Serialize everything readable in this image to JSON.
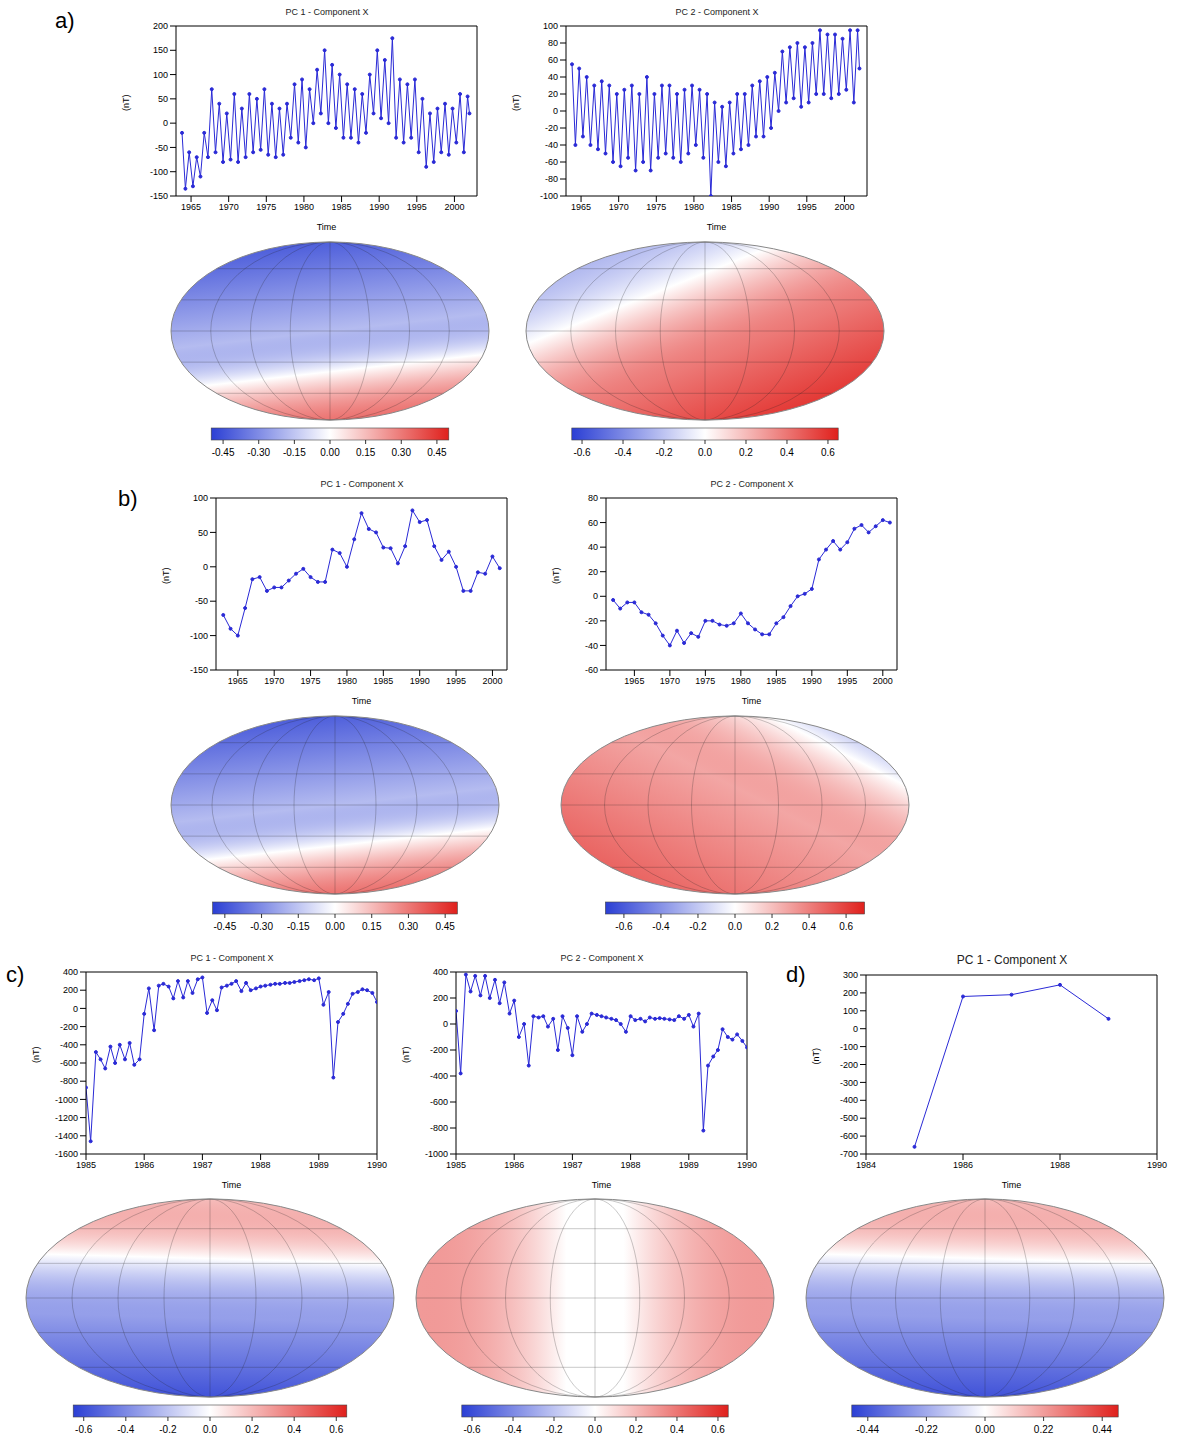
{
  "chart_data": [
    {
      "type": "line",
      "panel": "a)",
      "title": "PC 1 - Component X",
      "xlabel": "Time",
      "ylabel": "(nT)",
      "color": "#2a2ad6",
      "marker": "circle",
      "xlim": [
        1963,
        2003
      ],
      "xticks": [
        1965,
        1970,
        1975,
        1980,
        1985,
        1990,
        1995,
        2000
      ],
      "ylim": [
        -150,
        200
      ],
      "yticks": [
        -150,
        -100,
        -50,
        0,
        50,
        100,
        150,
        200
      ],
      "x": [
        1963.8,
        1964.25,
        1964.75,
        1965.25,
        1965.75,
        1966.25,
        1966.75,
        1967.25,
        1967.75,
        1968.25,
        1968.75,
        1969.25,
        1969.75,
        1970.25,
        1970.75,
        1971.25,
        1971.75,
        1972.25,
        1972.75,
        1973.25,
        1973.75,
        1974.25,
        1974.75,
        1975.25,
        1975.75,
        1976.25,
        1976.75,
        1977.25,
        1977.75,
        1978.25,
        1978.75,
        1979.25,
        1979.75,
        1980.25,
        1980.75,
        1981.25,
        1981.75,
        1982.25,
        1982.75,
        1983.25,
        1983.75,
        1984.25,
        1984.75,
        1985.25,
        1985.75,
        1986.25,
        1986.75,
        1987.25,
        1987.75,
        1988.25,
        1988.75,
        1989.25,
        1989.75,
        1990.25,
        1990.75,
        1991.25,
        1991.75,
        1992.25,
        1992.75,
        1993.25,
        1993.75,
        1994.25,
        1994.75,
        1995.25,
        1995.75,
        1996.25,
        1996.75,
        1997.25,
        1997.75,
        1998.25,
        1998.75,
        1999.25,
        1999.75,
        2000.25,
        2000.75,
        2001.25,
        2001.75,
        2002.0
      ],
      "values": [
        -20,
        -135,
        -60,
        -130,
        -70,
        -110,
        -20,
        -70,
        70,
        -60,
        40,
        -80,
        20,
        -75,
        60,
        -80,
        30,
        -70,
        60,
        -60,
        50,
        -55,
        70,
        -65,
        40,
        -70,
        30,
        -65,
        40,
        -30,
        80,
        -40,
        90,
        -50,
        70,
        0,
        110,
        20,
        150,
        0,
        120,
        -10,
        100,
        -30,
        80,
        -30,
        70,
        -40,
        60,
        -20,
        100,
        20,
        150,
        10,
        130,
        0,
        175,
        -30,
        90,
        -40,
        80,
        -30,
        90,
        -60,
        50,
        -90,
        20,
        -80,
        30,
        -60,
        40,
        -65,
        30,
        -40,
        60,
        -60,
        55,
        20
      ]
    },
    {
      "type": "line",
      "panel": "a)",
      "title": "PC 2 - Component X",
      "xlabel": "Time",
      "ylabel": "(nT)",
      "color": "#2a2ad6",
      "marker": "circle",
      "xlim": [
        1963,
        2003
      ],
      "xticks": [
        1965,
        1970,
        1975,
        1980,
        1985,
        1990,
        1995,
        2000
      ],
      "ylim": [
        -100,
        100
      ],
      "yticks": [
        -100,
        -80,
        -60,
        -40,
        -20,
        0,
        20,
        40,
        60,
        80,
        100
      ],
      "x": [
        1963.8,
        1964.25,
        1964.75,
        1965.25,
        1965.75,
        1966.25,
        1966.75,
        1967.25,
        1967.75,
        1968.25,
        1968.75,
        1969.25,
        1969.75,
        1970.25,
        1970.75,
        1971.25,
        1971.75,
        1972.25,
        1972.75,
        1973.25,
        1973.75,
        1974.25,
        1974.75,
        1975.25,
        1975.75,
        1976.25,
        1976.75,
        1977.25,
        1977.75,
        1978.25,
        1978.75,
        1979.25,
        1979.75,
        1980.25,
        1980.75,
        1981.25,
        1981.75,
        1982.25,
        1982.75,
        1983.25,
        1983.75,
        1984.25,
        1984.75,
        1985.25,
        1985.75,
        1986.25,
        1986.75,
        1987.25,
        1987.75,
        1988.25,
        1988.75,
        1989.25,
        1989.75,
        1990.25,
        1990.75,
        1991.25,
        1991.75,
        1992.25,
        1992.75,
        1993.25,
        1993.75,
        1994.25,
        1994.75,
        1995.25,
        1995.75,
        1996.25,
        1996.75,
        1997.25,
        1997.75,
        1998.25,
        1998.75,
        1999.25,
        1999.75,
        2000.25,
        2000.75,
        2001.25,
        2001.75,
        2002.0
      ],
      "values": [
        55,
        -40,
        50,
        -30,
        40,
        -40,
        30,
        -45,
        35,
        -50,
        30,
        -60,
        20,
        -65,
        25,
        -55,
        30,
        -70,
        20,
        -60,
        40,
        -70,
        20,
        -55,
        30,
        -50,
        30,
        -55,
        20,
        -60,
        25,
        -50,
        30,
        -40,
        25,
        -55,
        20,
        -100,
        10,
        -60,
        5,
        -65,
        10,
        -50,
        20,
        -45,
        20,
        -40,
        30,
        -30,
        35,
        -30,
        40,
        -20,
        45,
        0,
        70,
        10,
        75,
        15,
        80,
        5,
        75,
        10,
        80,
        20,
        95,
        20,
        90,
        15,
        90,
        20,
        85,
        25,
        95,
        10,
        95,
        50
      ]
    },
    {
      "type": "map",
      "panel": "a)",
      "colors": [
        "#2b3fd4",
        "#ffffff",
        "#e0201c"
      ],
      "colorbar": {
        "range": [
          -0.5,
          0.5
        ],
        "ticks": [
          -0.45,
          {
            "value": -0.3,
            "label": "-0.30"
          },
          -0.15,
          {
            "value": 0,
            "label": "0.00"
          },
          0.15,
          {
            "value": 0.3,
            "label": "0.30"
          },
          0.45
        ]
      }
    },
    {
      "type": "map",
      "panel": "a)",
      "colors": [
        "#2b3fd4",
        "#ffffff",
        "#e0201c"
      ],
      "colorbar": {
        "range": [
          -0.65,
          0.65
        ],
        "ticks": [
          -0.6,
          -0.4,
          -0.2,
          {
            "value": 0,
            "label": "0.0"
          },
          0.2,
          0.4,
          0.6
        ]
      }
    },
    {
      "type": "line",
      "panel": "b)",
      "title": "PC 1 - Component X",
      "xlabel": "Time",
      "ylabel": "(nT)",
      "color": "#2a2ad6",
      "marker": "circle",
      "xlim": [
        1962,
        2002
      ],
      "xticks": [
        1965,
        1970,
        1975,
        1980,
        1985,
        1990,
        1995,
        2000
      ],
      "ylim": [
        -150,
        100
      ],
      "yticks": [
        -150,
        -100,
        -50,
        0,
        50,
        100
      ],
      "x": [
        1963,
        1964,
        1965,
        1966,
        1967,
        1968,
        1969,
        1970,
        1971,
        1972,
        1973,
        1974,
        1975,
        1976,
        1977,
        1978,
        1979,
        1980,
        1981,
        1982,
        1983,
        1984,
        1985,
        1986,
        1987,
        1988,
        1989,
        1990,
        1991,
        1992,
        1993,
        1994,
        1995,
        1996,
        1997,
        1998,
        1999,
        2000,
        2001
      ],
      "values": [
        -70,
        -90,
        -100,
        -60,
        -18,
        -15,
        -35,
        -30,
        -30,
        -20,
        -10,
        -3,
        -15,
        -22,
        -22,
        25,
        20,
        0,
        40,
        78,
        55,
        50,
        28,
        27,
        5,
        30,
        82,
        65,
        68,
        30,
        10,
        22,
        0,
        -35,
        -35,
        -8,
        -10,
        15,
        -2
      ]
    },
    {
      "type": "line",
      "panel": "b)",
      "title": "PC 2 - Component X",
      "xlabel": "Time",
      "ylabel": "(nT)",
      "color": "#2a2ad6",
      "marker": "circle",
      "xlim": [
        1961,
        2002
      ],
      "xticks": [
        1965,
        1970,
        1975,
        1980,
        1985,
        1990,
        1995,
        2000
      ],
      "ylim": [
        -60,
        80
      ],
      "yticks": [
        -60,
        -40,
        -20,
        0,
        20,
        40,
        60,
        80
      ],
      "x": [
        1962,
        1963,
        1964,
        1965,
        1966,
        1967,
        1968,
        1969,
        1970,
        1971,
        1972,
        1973,
        1974,
        1975,
        1976,
        1977,
        1978,
        1979,
        1980,
        1981,
        1982,
        1983,
        1984,
        1985,
        1986,
        1987,
        1988,
        1989,
        1990,
        1991,
        1992,
        1993,
        1994,
        1995,
        1996,
        1997,
        1998,
        1999,
        2000,
        2001
      ],
      "values": [
        -3,
        -10,
        -5,
        -5,
        -13,
        -15,
        -22,
        -32,
        -40,
        -28,
        -38,
        -30,
        -33,
        -20,
        -20,
        -23,
        -24,
        -22,
        -14,
        -22,
        -27,
        -31,
        -31,
        -22,
        -17,
        -8,
        0,
        2,
        6,
        30,
        38,
        45,
        38,
        44,
        55,
        58,
        52,
        57,
        62,
        60
      ]
    },
    {
      "type": "map",
      "panel": "b)",
      "colors": [
        "#2b3fd4",
        "#ffffff",
        "#e0201c"
      ],
      "colorbar": {
        "range": [
          -0.5,
          0.5
        ],
        "ticks": [
          -0.45,
          {
            "value": -0.3,
            "label": "-0.30"
          },
          -0.15,
          {
            "value": 0,
            "label": "0.00"
          },
          0.15,
          {
            "value": 0.3,
            "label": "0.30"
          },
          0.45
        ]
      }
    },
    {
      "type": "map",
      "panel": "b)",
      "colors": [
        "#2b3fd4",
        "#ffffff",
        "#e0201c"
      ],
      "colorbar": {
        "range": [
          -0.7,
          0.7
        ],
        "ticks": [
          -0.6,
          -0.4,
          -0.2,
          {
            "value": 0,
            "label": "0.0"
          },
          0.2,
          0.4,
          0.6
        ]
      }
    },
    {
      "type": "line",
      "panel": "c)",
      "title": "PC 1 - Component X",
      "xlabel": "Time",
      "ylabel": "(nT)",
      "color": "#2a2ad6",
      "marker": "circle",
      "xlim": [
        1985,
        1990
      ],
      "xticks": [
        1985,
        1986,
        1987,
        1988,
        1989,
        1990
      ],
      "ylim": [
        -1600,
        400
      ],
      "yticks": [
        -1600,
        -1400,
        -1200,
        -1000,
        -800,
        -600,
        -400,
        -200,
        0,
        200,
        400
      ],
      "x": [
        1985,
        1985.08,
        1985.17,
        1985.25,
        1985.33,
        1985.42,
        1985.5,
        1985.58,
        1985.67,
        1985.75,
        1985.83,
        1985.92,
        1986,
        1986.08,
        1986.17,
        1986.25,
        1986.33,
        1986.42,
        1986.5,
        1986.58,
        1986.67,
        1986.75,
        1986.83,
        1986.92,
        1987,
        1987.08,
        1987.17,
        1987.25,
        1987.33,
        1987.42,
        1987.5,
        1987.58,
        1987.67,
        1987.75,
        1987.83,
        1987.92,
        1988,
        1988.08,
        1988.17,
        1988.25,
        1988.33,
        1988.42,
        1988.5,
        1988.58,
        1988.67,
        1988.75,
        1988.83,
        1988.92,
        1989,
        1989.08,
        1989.17,
        1989.25,
        1989.33,
        1989.42,
        1989.5,
        1989.58,
        1989.67,
        1989.75,
        1989.83,
        1989.92,
        1990
      ],
      "values": [
        -870,
        -1460,
        -480,
        -560,
        -660,
        -420,
        -600,
        -400,
        -560,
        -380,
        -620,
        -560,
        -60,
        220,
        -240,
        250,
        270,
        240,
        110,
        300,
        120,
        300,
        170,
        320,
        340,
        -50,
        90,
        -20,
        230,
        250,
        270,
        300,
        190,
        280,
        200,
        220,
        240,
        250,
        260,
        270,
        270,
        280,
        280,
        290,
        300,
        310,
        320,
        310,
        330,
        40,
        180,
        -760,
        -150,
        -60,
        50,
        160,
        180,
        210,
        200,
        170,
        70
      ]
    },
    {
      "type": "line",
      "panel": "c)",
      "title": "PC 2 - Component X",
      "xlabel": "Time",
      "ylabel": "(nT)",
      "color": "#2a2ad6",
      "marker": "circle",
      "xlim": [
        1985,
        1990
      ],
      "xticks": [
        1985,
        1986,
        1987,
        1988,
        1989,
        1990
      ],
      "ylim": [
        -1000,
        400
      ],
      "yticks": [
        -1000,
        -800,
        -600,
        -400,
        -200,
        0,
        200,
        400
      ],
      "x": [
        1985,
        1985.08,
        1985.17,
        1985.25,
        1985.33,
        1985.42,
        1985.5,
        1985.58,
        1985.67,
        1985.75,
        1985.83,
        1985.92,
        1986,
        1986.08,
        1986.17,
        1986.25,
        1986.33,
        1986.42,
        1986.5,
        1986.58,
        1986.67,
        1986.75,
        1986.83,
        1986.92,
        1987,
        1987.08,
        1987.17,
        1987.25,
        1987.33,
        1987.42,
        1987.5,
        1987.58,
        1987.67,
        1987.75,
        1987.83,
        1987.92,
        1988,
        1988.08,
        1988.17,
        1988.25,
        1988.33,
        1988.42,
        1988.5,
        1988.58,
        1988.67,
        1988.75,
        1988.83,
        1988.92,
        1989,
        1989.08,
        1989.17,
        1989.25,
        1989.33,
        1989.42,
        1989.5,
        1989.58,
        1989.67,
        1989.75,
        1989.83,
        1989.92,
        1990
      ],
      "values": [
        100,
        -380,
        380,
        250,
        370,
        220,
        370,
        200,
        340,
        160,
        320,
        80,
        180,
        -100,
        0,
        -320,
        60,
        50,
        60,
        -20,
        40,
        -200,
        60,
        -30,
        -240,
        60,
        -60,
        0,
        80,
        70,
        60,
        50,
        40,
        30,
        0,
        -60,
        60,
        30,
        40,
        20,
        50,
        40,
        45,
        40,
        35,
        30,
        60,
        40,
        70,
        -20,
        80,
        -820,
        -320,
        -250,
        -200,
        -40,
        -100,
        -120,
        -80,
        -130,
        -180
      ]
    },
    {
      "type": "map",
      "panel": "c)",
      "colors": [
        "#2b3fd4",
        "#ffffff",
        "#e0201c"
      ],
      "colorbar": {
        "range": [
          -0.65,
          0.65
        ],
        "ticks": [
          -0.6,
          -0.4,
          -0.2,
          {
            "value": 0,
            "label": "0.0"
          },
          0.2,
          0.4,
          0.6
        ]
      }
    },
    {
      "type": "map",
      "panel": "c)",
      "colors": [
        "#2b3fd4",
        "#ffffff",
        "#e0201c"
      ],
      "colorbar": {
        "range": [
          -0.65,
          0.65
        ],
        "ticks": [
          -0.6,
          -0.4,
          -0.2,
          {
            "value": 0,
            "label": "0.0"
          },
          0.2,
          0.4,
          0.6
        ]
      }
    },
    {
      "type": "line",
      "panel": "d)",
      "title": "PC 1 - Component X",
      "xlabel": "Time",
      "ylabel": "(nT)",
      "color": "#2a2ad6",
      "marker": "circle",
      "xlim": [
        1984,
        1990
      ],
      "xticks": [
        1984,
        1986,
        1988,
        1990
      ],
      "ylim": [
        -700,
        300
      ],
      "yticks": [
        -700,
        -600,
        -500,
        -400,
        -300,
        -200,
        -100,
        0,
        100,
        200,
        300
      ],
      "x": [
        1985,
        1986,
        1987,
        1988,
        1989
      ],
      "values": [
        -660,
        180,
        190,
        245,
        55
      ]
    },
    {
      "type": "map",
      "panel": "d)",
      "colors": [
        "#2b3fd4",
        "#ffffff",
        "#e0201c"
      ],
      "colorbar": {
        "range": [
          -0.5,
          0.5
        ],
        "ticks": [
          -0.44,
          -0.22,
          {
            "value": 0,
            "label": "0.00"
          },
          0.22,
          0.44
        ]
      }
    }
  ]
}
